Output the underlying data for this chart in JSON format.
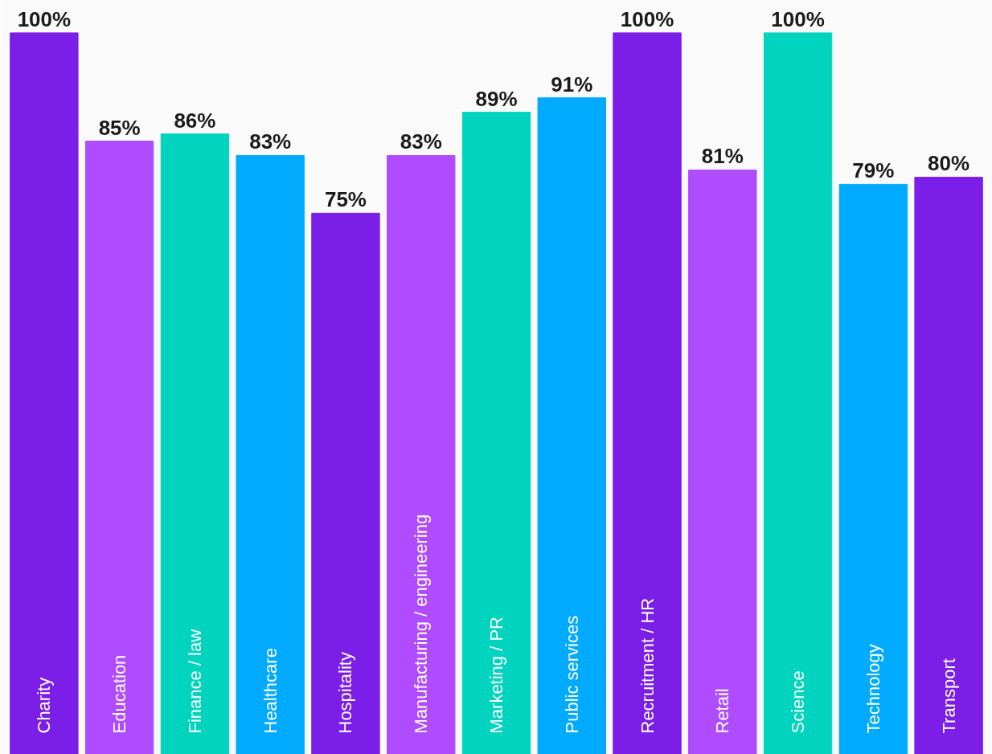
{
  "chart_data": {
    "type": "bar",
    "categories": [
      "Charity",
      "Education",
      "Finance / law",
      "Healthcare",
      "Hospitality",
      "Manufacturing / engineering",
      "Marketing / PR",
      "Public services",
      "Recruitment / HR",
      "Retail",
      "Science",
      "Technology",
      "Transport"
    ],
    "values": [
      100,
      85,
      86,
      83,
      75,
      83,
      89,
      91,
      100,
      81,
      100,
      79,
      80
    ],
    "value_labels": [
      "100%",
      "85%",
      "86%",
      "83%",
      "75%",
      "83%",
      "89%",
      "91%",
      "100%",
      "81%",
      "100%",
      "79%",
      "80%"
    ],
    "colors": [
      "#7a1ee8",
      "#b04cff",
      "#00d4be",
      "#00aaff",
      "#7a1ee8",
      "#b04cff",
      "#00d4be",
      "#00aaff",
      "#7a1ee8",
      "#b04cff",
      "#00d4be",
      "#00aaff",
      "#7a1ee8"
    ],
    "grid": false
  }
}
